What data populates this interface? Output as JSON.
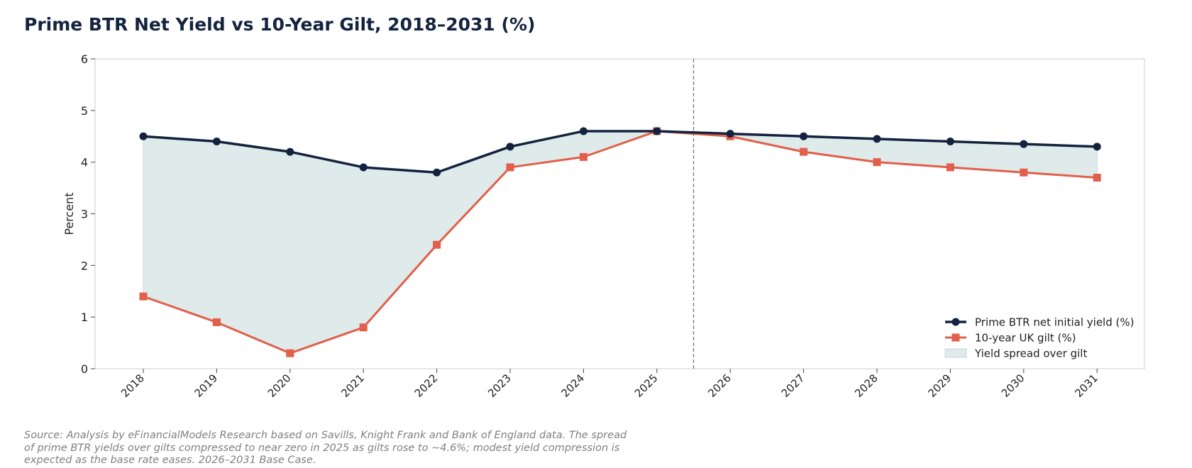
{
  "title": "Prime BTR Net Yield vs 10-Year Gilt, 2018–2031 (%)",
  "source_note": "Source: Analysis by eFinancialModels Research based on Savills, Knight Frank and Bank of England data. The spread of prime BTR yields over gilts compressed to near zero in 2025 as gilts rose to ~4.6%; modest yield compression is expected as the base rate eases. 2026–2031 Base Case.",
  "colors": {
    "btr": "#13233f",
    "gilt": "#e15f4b",
    "spread_fill": "#dfeaea",
    "divider": "#777777"
  },
  "chart_data": {
    "type": "line",
    "title": "Prime BTR Net Yield vs 10-Year Gilt, 2018–2031 (%)",
    "xlabel": "",
    "ylabel": "Percent",
    "ylim": [
      0,
      6
    ],
    "yticks": [
      "0",
      "1",
      "2",
      "3",
      "4",
      "5",
      "6"
    ],
    "categories": [
      "2018",
      "2019",
      "2020",
      "2021",
      "2022",
      "2023",
      "2024",
      "2025",
      "2026",
      "2027",
      "2028",
      "2029",
      "2030",
      "2031"
    ],
    "series": [
      {
        "name": "Prime BTR net initial yield (%)",
        "marker": "circle",
        "values": [
          4.5,
          4.4,
          4.2,
          3.9,
          3.8,
          4.3,
          4.6,
          4.6,
          4.55,
          4.5,
          4.45,
          4.4,
          4.35,
          4.3
        ]
      },
      {
        "name": "10-year UK gilt (%)",
        "marker": "square",
        "values": [
          1.4,
          0.9,
          0.3,
          0.8,
          2.4,
          3.9,
          4.1,
          4.6,
          4.5,
          4.2,
          4.0,
          3.9,
          3.8,
          3.7
        ]
      }
    ],
    "fill_between": {
      "name": "Yield spread over gilt"
    },
    "divider_between": [
      "2025",
      "2026"
    ],
    "grid": false,
    "legend_position": "lower-right"
  }
}
